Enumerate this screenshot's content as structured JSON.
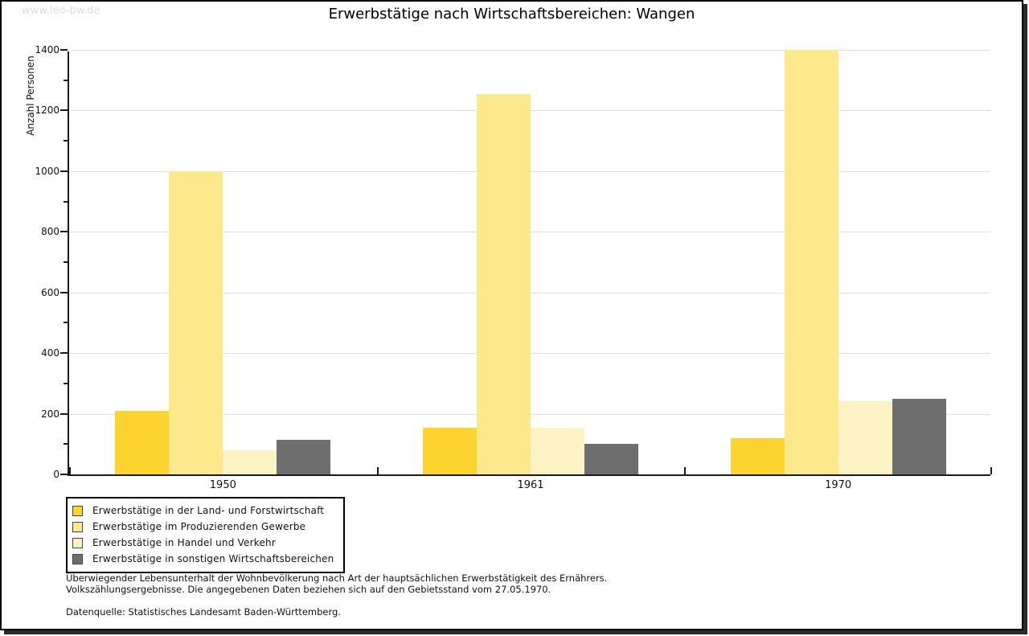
{
  "watermark": "www.leo-bw.de",
  "title": "Erwerbstätige nach Wirtschaftsbereichen: Wangen",
  "chart_data": {
    "type": "bar",
    "title": "Erwerbstätige nach Wirtschaftsbereichen: Wangen",
    "categories": [
      "1950",
      "1961",
      "1970"
    ],
    "series": [
      {
        "name": "Erwerbstätige in der Land- und Forstwirtschaft",
        "color": "#FCD32F",
        "values": [
          210,
          155,
          120
        ]
      },
      {
        "name": "Erwerbstätige im Produzierenden Gewerbe",
        "color": "#FCE98C",
        "values": [
          1000,
          1255,
          1400
        ]
      },
      {
        "name": "Erwerbstätige in Handel und Verkehr",
        "color": "#FCF3C4",
        "values": [
          80,
          155,
          240
        ]
      },
      {
        "name": "Erwerbstätige in sonstigen Wirtschaftsbereichen",
        "color": "#6E6E6E",
        "values": [
          115,
          100,
          250
        ]
      }
    ],
    "xlabel": "",
    "ylabel": "Anzahl Personen",
    "ylim": [
      0,
      1400
    ],
    "ytick_step": 200,
    "yminor_step": 100,
    "grid": true,
    "legend_position": "bottom-left"
  },
  "footnote": {
    "line1": "Überwiegender Lebensunterhalt der Wohnbevölkerung nach Art der hauptsächlichen Erwerbstätigkeit des Ernährers.",
    "line2": "Volkszählungsergebnisse. Die angegebenen Daten beziehen sich auf den Gebietsstand vom 27.05.1970.",
    "source": "Datenquelle: Statistisches Landesamt Baden-Württemberg."
  },
  "colors": {
    "gridline": "#e0e0e0",
    "axis": "#1a1a1a",
    "watermark": "#dcdcdc",
    "frame_shadow": "#2b2b2b"
  }
}
